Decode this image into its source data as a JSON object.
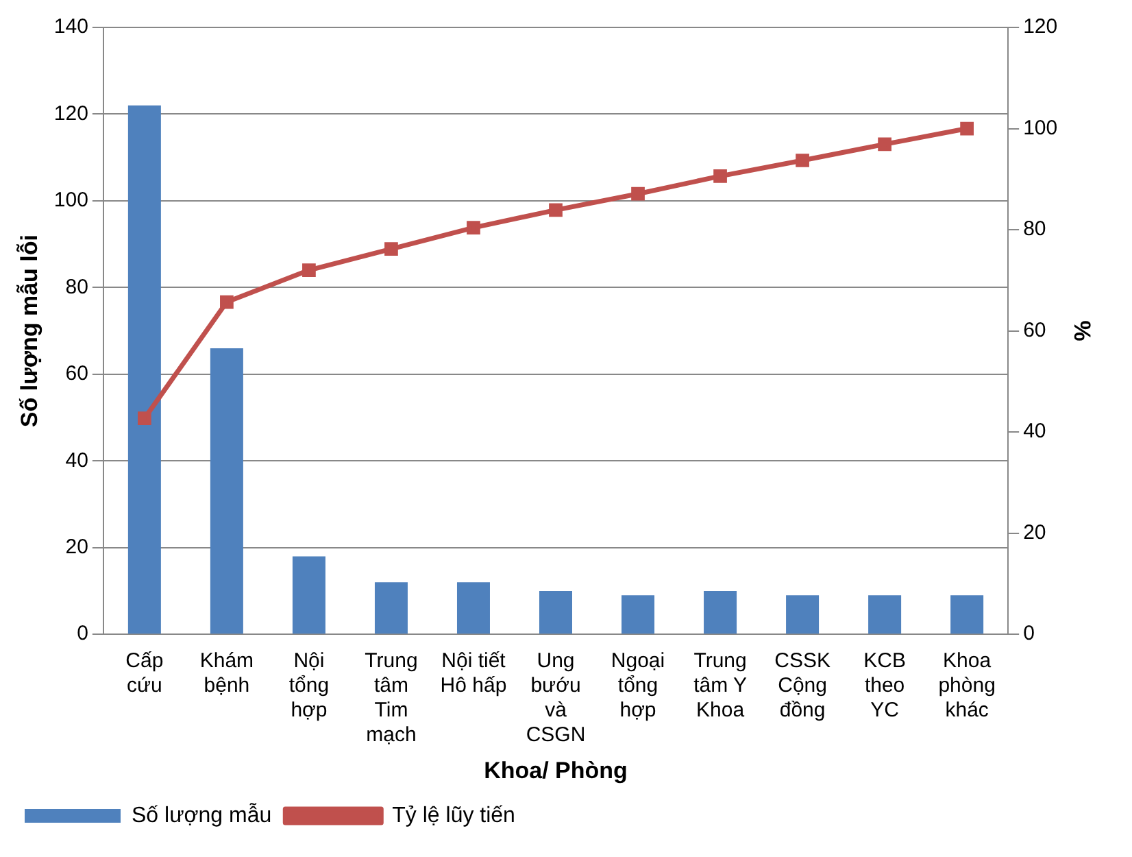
{
  "chart_data": {
    "type": "bar",
    "xlabel": "Khoa/ Phòng",
    "ylabel": "Số lượng mẫu lỗi",
    "y2label": "%",
    "categories": [
      "Cấp cứu",
      "Khám bệnh",
      "Nội tổng hợp",
      "Trung tâm Tim mạch",
      "Nội tiết Hô hấp",
      "Ung bướu và CSGN",
      "Ngoại tổng hợp",
      "Trung tâm Y Khoa",
      "CSSK Cộng đồng",
      "KCB theo YC",
      "Khoa phòng khác"
    ],
    "series": [
      {
        "name": "Số lượng mẫu",
        "color": "#4f81bd",
        "values": [
          122,
          66,
          18,
          12,
          12,
          10,
          9,
          10,
          9,
          9,
          9
        ]
      },
      {
        "name": "Tỷ lệ lũy tiến",
        "type": "line",
        "axis": "y2",
        "color": "#c0504d",
        "marker": "square",
        "values": [
          42.7,
          65.7,
          72.0,
          76.2,
          80.4,
          83.9,
          87.1,
          90.6,
          93.7,
          96.9,
          100
        ]
      }
    ],
    "ylim": [
      0,
      140
    ],
    "yticks": [
      0,
      20,
      40,
      60,
      80,
      100,
      120,
      140
    ],
    "y2lim": [
      0,
      120
    ],
    "y2ticks": [
      0,
      20,
      40,
      60,
      80,
      100,
      120
    ],
    "grid": "y",
    "legend": "bottom left"
  }
}
